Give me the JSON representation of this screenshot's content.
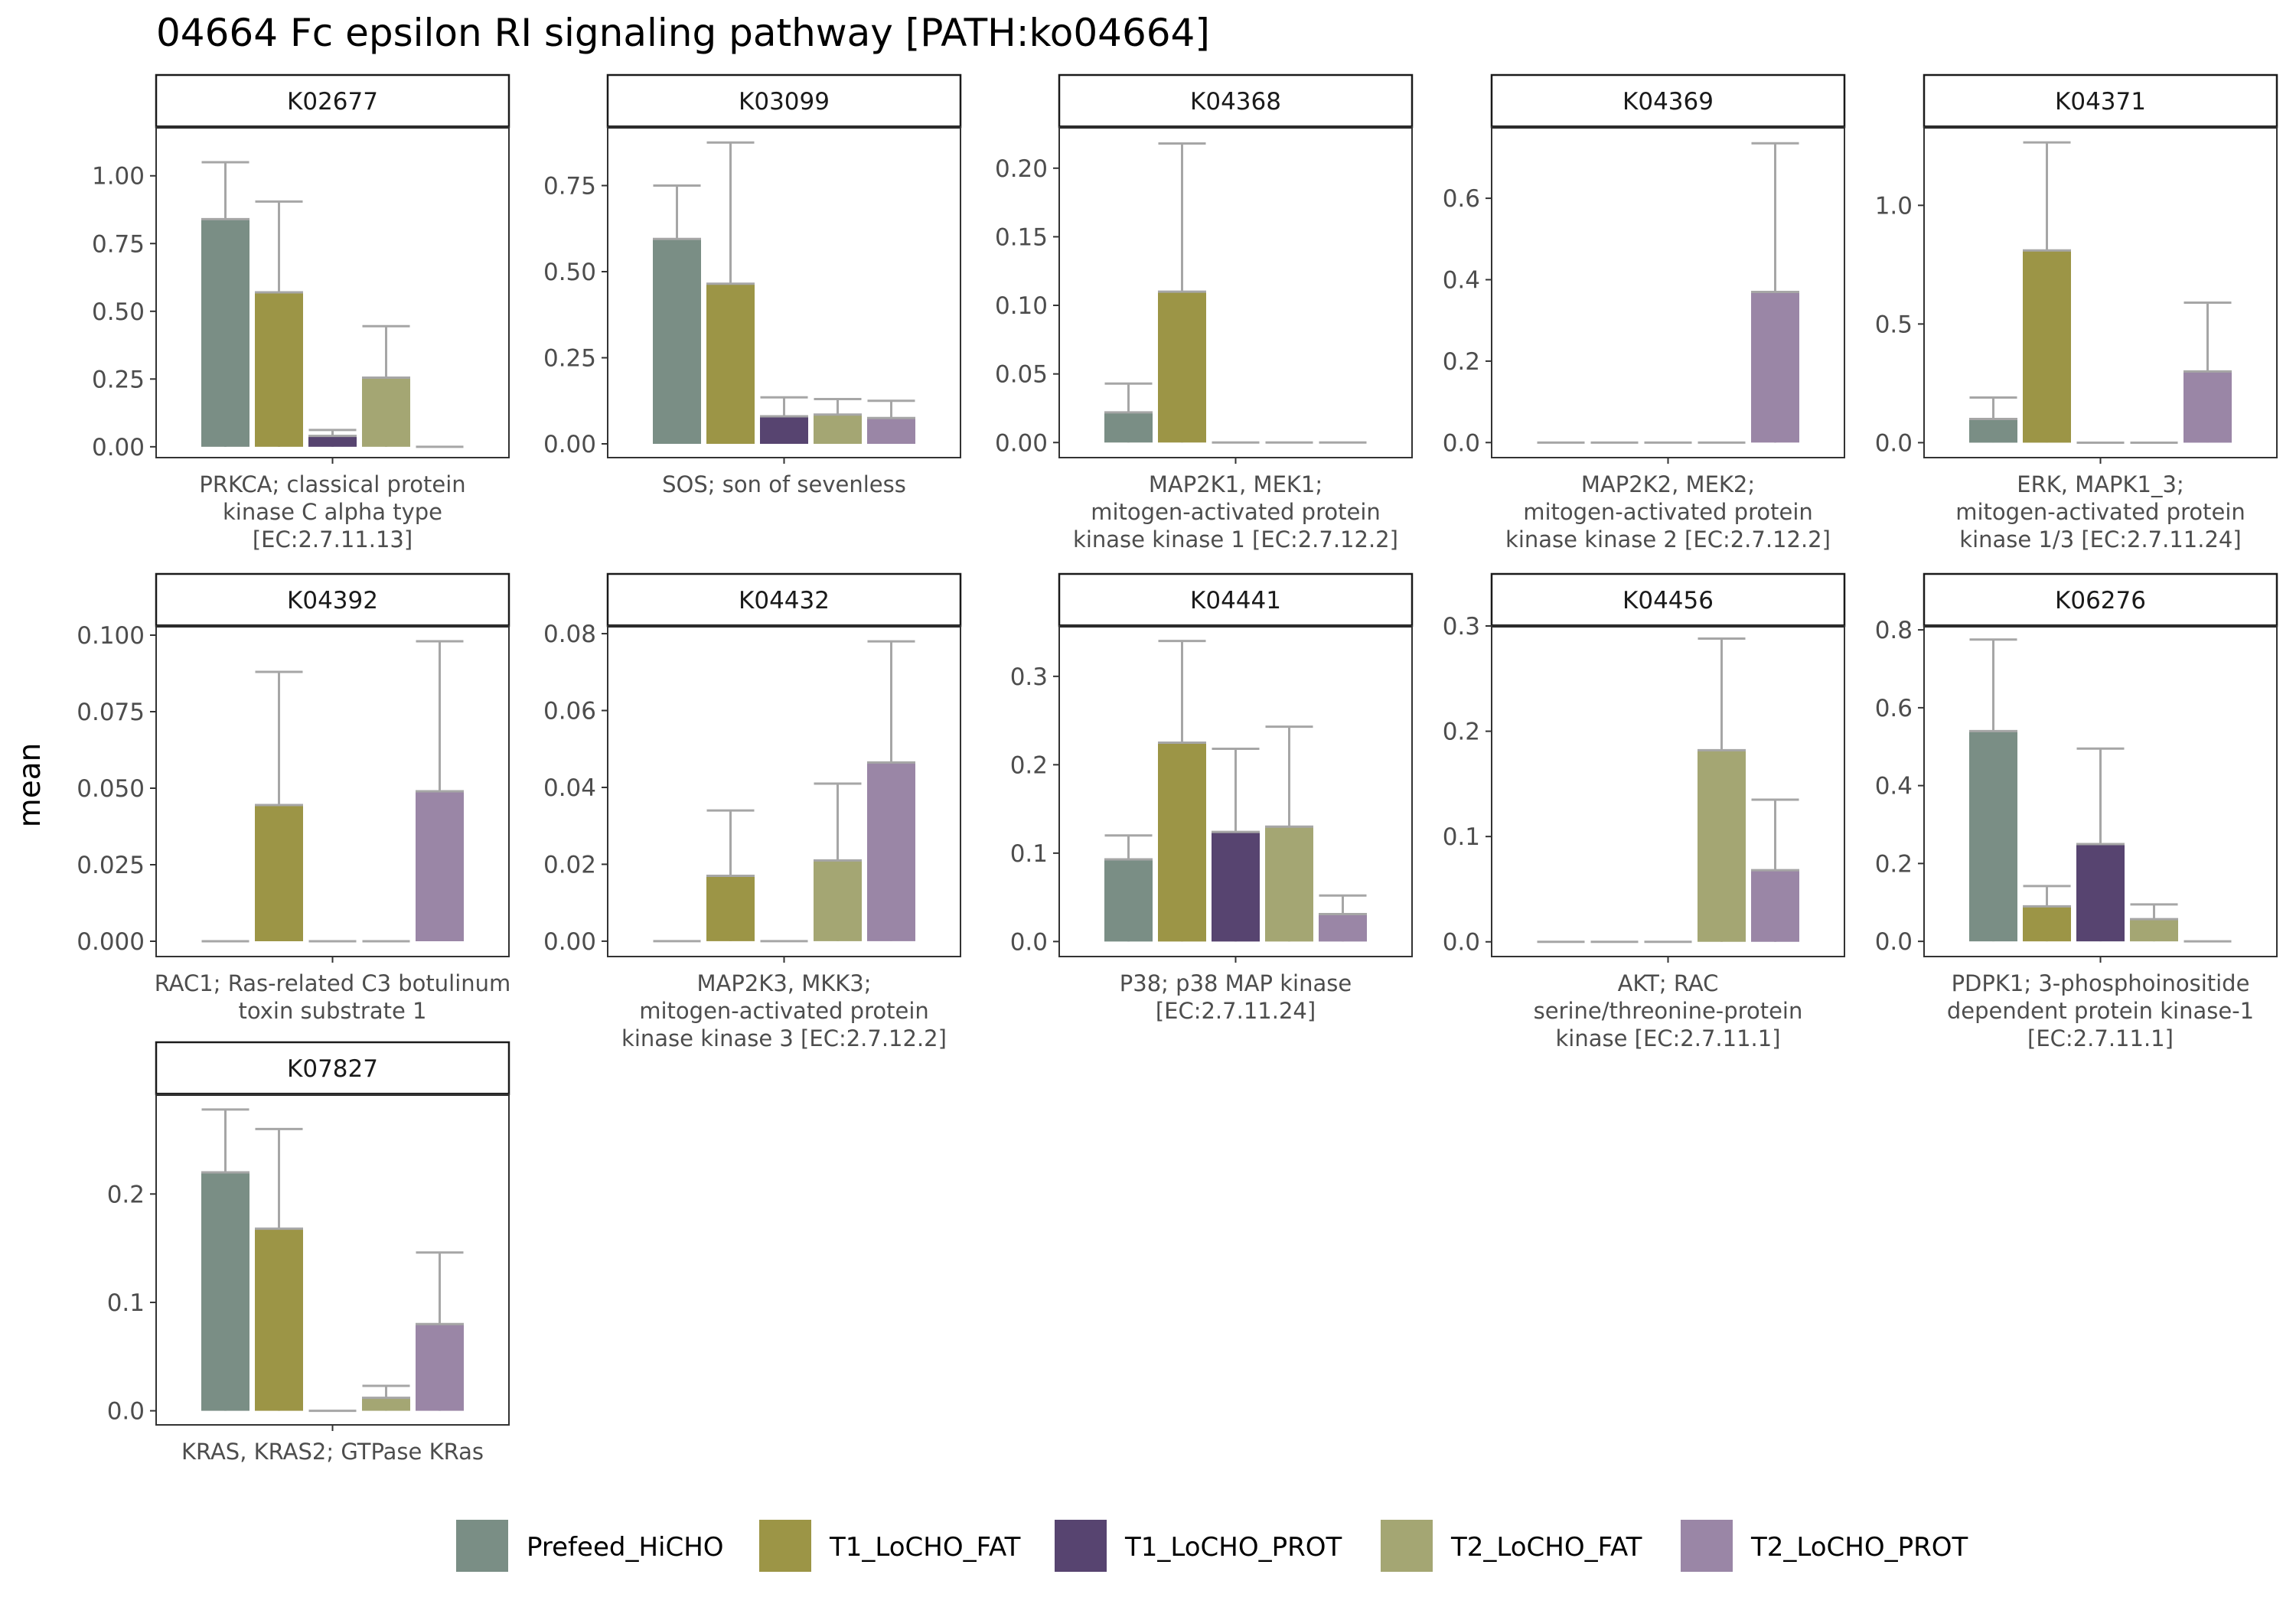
{
  "title": "04664 Fc epsilon RI signaling pathway [PATH:ko04664]",
  "ylabel": "mean",
  "colors": {
    "Prefeed_HiCHO": "#7a8e85",
    "T1_LoCHO_FAT": "#9c9546",
    "T1_LoCHO_PROT": "#574470",
    "T2_LoCHO_FAT": "#a4a673",
    "T2_LoCHO_PROT": "#9a86a6",
    "error_bar": "#a6a6a6"
  },
  "legend": [
    "Prefeed_HiCHO",
    "T1_LoCHO_FAT",
    "T1_LoCHO_PROT",
    "T2_LoCHO_FAT",
    "T2_LoCHO_PROT"
  ],
  "chart_data": {
    "type": "bar",
    "facet_layout": "5 columns, independent y scales, legend bottom",
    "series": [
      "Prefeed_HiCHO",
      "T1_LoCHO_FAT",
      "T1_LoCHO_PROT",
      "T2_LoCHO_FAT",
      "T2_LoCHO_PROT"
    ],
    "panels": [
      {
        "id": "K02677",
        "label": [
          "PRKCA; classical protein",
          "kinase C alpha type",
          "[EC:2.7.11.13]"
        ],
        "ylim": [
          -0.04,
          1.18
        ],
        "ticks": [
          0,
          0.25,
          0.5,
          0.75,
          1.0
        ],
        "tick_labels": [
          "0.00",
          "0.25",
          "0.50",
          "0.75",
          "1.00"
        ],
        "values": [
          0.84,
          0.57,
          0.04,
          0.255,
          0.0
        ],
        "errors": [
          1.05,
          0.905,
          0.062,
          0.445,
          0.0
        ]
      },
      {
        "id": "K03099",
        "label": [
          "SOS; son of sevenless"
        ],
        "ylim": [
          -0.04,
          0.92
        ],
        "ticks": [
          0,
          0.25,
          0.5,
          0.75
        ],
        "tick_labels": [
          "0.00",
          "0.25",
          "0.50",
          "0.75"
        ],
        "values": [
          0.595,
          0.465,
          0.08,
          0.085,
          0.075
        ],
        "errors": [
          0.75,
          0.875,
          0.135,
          0.13,
          0.125
        ]
      },
      {
        "id": "K04368",
        "label": [
          "MAP2K1, MEK1;",
          "mitogen-activated protein",
          "kinase kinase 1 [EC:2.7.12.2]"
        ],
        "ylim": [
          -0.011,
          0.23
        ],
        "ticks": [
          0,
          0.05,
          0.1,
          0.15,
          0.2
        ],
        "tick_labels": [
          "0.00",
          "0.05",
          "0.10",
          "0.15",
          "0.20"
        ],
        "values": [
          0.022,
          0.11,
          0.0,
          0.0,
          0.0
        ],
        "errors": [
          0.043,
          0.218,
          0.0,
          0.0,
          0.0
        ]
      },
      {
        "id": "K04369",
        "label": [
          "MAP2K2, MEK2;",
          "mitogen-activated protein",
          "kinase kinase 2 [EC:2.7.12.2]"
        ],
        "ylim": [
          -0.037,
          0.775
        ],
        "ticks": [
          0,
          0.2,
          0.4,
          0.6
        ],
        "tick_labels": [
          "0.0",
          "0.2",
          "0.4",
          "0.6"
        ],
        "values": [
          0.0,
          0.0,
          0.0,
          0.0,
          0.37
        ],
        "errors": [
          0.0,
          0.0,
          0.0,
          0.0,
          0.735
        ]
      },
      {
        "id": "K04371",
        "label": [
          "ERK, MAPK1_3;",
          "mitogen-activated protein",
          "kinase 1/3 [EC:2.7.11.24]"
        ],
        "ylim": [
          -0.063,
          1.33
        ],
        "ticks": [
          0,
          0.5,
          1.0
        ],
        "tick_labels": [
          "0.0",
          "0.5",
          "1.0"
        ],
        "values": [
          0.1,
          0.81,
          0.0,
          0.0,
          0.3
        ],
        "errors": [
          0.19,
          1.265,
          0.0,
          0.0,
          0.59
        ]
      },
      {
        "id": "K04392",
        "label": [
          "RAC1; Ras-related C3 botulinum",
          "toxin substrate 1"
        ],
        "ylim": [
          -0.005,
          0.103
        ],
        "ticks": [
          0,
          0.025,
          0.05,
          0.075,
          0.1
        ],
        "tick_labels": [
          "0.000",
          "0.025",
          "0.050",
          "0.075",
          "0.100"
        ],
        "values": [
          0.0,
          0.0445,
          0.0,
          0.0,
          0.049
        ],
        "errors": [
          0.0,
          0.088,
          0.0,
          0.0,
          0.098
        ]
      },
      {
        "id": "K04432",
        "label": [
          "MAP2K3, MKK3;",
          "mitogen-activated protein",
          "kinase kinase 3 [EC:2.7.12.2]"
        ],
        "ylim": [
          -0.004,
          0.082
        ],
        "ticks": [
          0,
          0.02,
          0.04,
          0.06,
          0.08
        ],
        "tick_labels": [
          "0.00",
          "0.02",
          "0.04",
          "0.06",
          "0.08"
        ],
        "values": [
          0.0,
          0.017,
          0.0,
          0.021,
          0.0465
        ],
        "errors": [
          0.0,
          0.034,
          0.0,
          0.041,
          0.078
        ]
      },
      {
        "id": "K04441",
        "label": [
          "P38; p38 MAP kinase",
          "[EC:2.7.11.24]"
        ],
        "ylim": [
          -0.017,
          0.357
        ],
        "ticks": [
          0,
          0.1,
          0.2,
          0.3
        ],
        "tick_labels": [
          "0.0",
          "0.1",
          "0.2",
          "0.3"
        ],
        "values": [
          0.093,
          0.225,
          0.124,
          0.13,
          0.031
        ],
        "errors": [
          0.12,
          0.34,
          0.218,
          0.243,
          0.052
        ]
      },
      {
        "id": "K04456",
        "label": [
          "AKT; RAC",
          "serine/threonine-protein",
          "kinase [EC:2.7.11.1]"
        ],
        "ylim": [
          -0.014,
          0.3
        ],
        "ticks": [
          0,
          0.1,
          0.2,
          0.3
        ],
        "tick_labels": [
          "0.0",
          "0.1",
          "0.2",
          "0.3"
        ],
        "values": [
          0.0,
          0.0,
          0.0,
          0.182,
          0.068
        ],
        "errors": [
          0.0,
          0.0,
          0.0,
          0.288,
          0.135
        ]
      },
      {
        "id": "K06276",
        "label": [
          "PDPK1; 3-phosphoinositide",
          "dependent protein kinase-1",
          "[EC:2.7.11.1]"
        ],
        "ylim": [
          -0.039,
          0.81
        ],
        "ticks": [
          0,
          0.2,
          0.4,
          0.6,
          0.8
        ],
        "tick_labels": [
          "0.0",
          "0.2",
          "0.4",
          "0.6",
          "0.8"
        ],
        "values": [
          0.54,
          0.09,
          0.25,
          0.057,
          0.0
        ],
        "errors": [
          0.775,
          0.142,
          0.495,
          0.095,
          0.0
        ]
      },
      {
        "id": "K07827",
        "label": [
          "KRAS, KRAS2; GTPase KRas"
        ],
        "ylim": [
          -0.013,
          0.292
        ],
        "ticks": [
          0,
          0.1,
          0.2
        ],
        "tick_labels": [
          "0.0",
          "0.1",
          "0.2"
        ],
        "values": [
          0.22,
          0.168,
          0.0,
          0.012,
          0.08
        ],
        "errors": [
          0.278,
          0.26,
          0.0,
          0.023,
          0.146
        ]
      }
    ]
  }
}
